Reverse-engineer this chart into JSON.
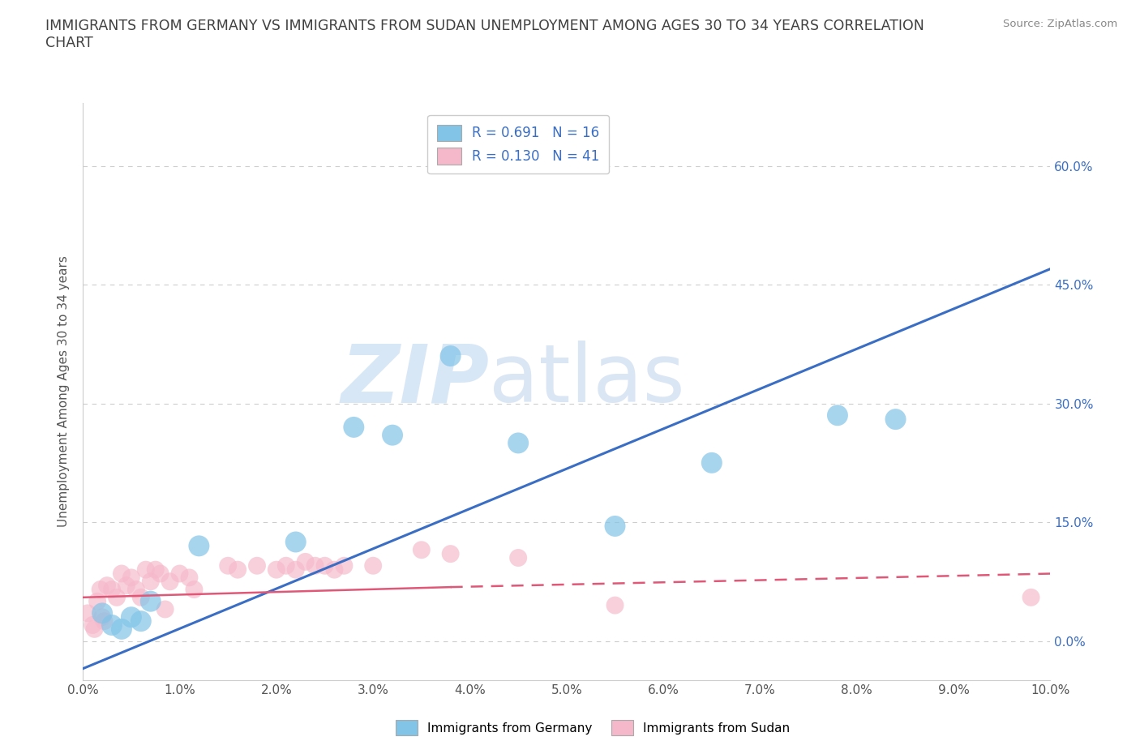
{
  "title": "IMMIGRANTS FROM GERMANY VS IMMIGRANTS FROM SUDAN UNEMPLOYMENT AMONG AGES 30 TO 34 YEARS CORRELATION\nCHART",
  "source": "Source: ZipAtlas.com",
  "ylabel": "Unemployment Among Ages 30 to 34 years",
  "xlim": [
    0.0,
    10.0
  ],
  "ylim": [
    -5.0,
    68.0
  ],
  "xticks": [
    0.0,
    1.0,
    2.0,
    3.0,
    4.0,
    5.0,
    6.0,
    7.0,
    8.0,
    9.0,
    10.0
  ],
  "yticks": [
    0.0,
    15.0,
    30.0,
    45.0,
    60.0
  ],
  "germany_color": "#82c4e8",
  "sudan_color": "#f5b8ca",
  "germany_line_color": "#3a6ec4",
  "sudan_line_color": "#e05878",
  "germany_R": 0.691,
  "germany_N": 16,
  "sudan_R": 0.13,
  "sudan_N": 41,
  "watermark_zip": "ZIP",
  "watermark_atlas": "atlas",
  "germany_scatter": [
    [
      0.2,
      3.5
    ],
    [
      0.3,
      2.0
    ],
    [
      0.4,
      1.5
    ],
    [
      0.5,
      3.0
    ],
    [
      0.6,
      2.5
    ],
    [
      0.7,
      5.0
    ],
    [
      1.2,
      12.0
    ],
    [
      2.2,
      12.5
    ],
    [
      2.8,
      27.0
    ],
    [
      3.2,
      26.0
    ],
    [
      3.8,
      36.0
    ],
    [
      4.5,
      25.0
    ],
    [
      5.5,
      14.5
    ],
    [
      6.5,
      22.5
    ],
    [
      7.8,
      28.5
    ],
    [
      8.4,
      28.0
    ]
  ],
  "sudan_scatter": [
    [
      0.05,
      3.5
    ],
    [
      0.1,
      2.0
    ],
    [
      0.12,
      1.5
    ],
    [
      0.15,
      5.0
    ],
    [
      0.18,
      6.5
    ],
    [
      0.2,
      3.0
    ],
    [
      0.22,
      2.5
    ],
    [
      0.25,
      7.0
    ],
    [
      0.3,
      6.5
    ],
    [
      0.35,
      5.5
    ],
    [
      0.4,
      8.5
    ],
    [
      0.45,
      7.0
    ],
    [
      0.5,
      8.0
    ],
    [
      0.55,
      6.5
    ],
    [
      0.6,
      5.5
    ],
    [
      0.65,
      9.0
    ],
    [
      0.7,
      7.5
    ],
    [
      0.75,
      9.0
    ],
    [
      0.8,
      8.5
    ],
    [
      0.85,
      4.0
    ],
    [
      0.9,
      7.5
    ],
    [
      1.0,
      8.5
    ],
    [
      1.1,
      8.0
    ],
    [
      1.15,
      6.5
    ],
    [
      1.5,
      9.5
    ],
    [
      1.6,
      9.0
    ],
    [
      1.8,
      9.5
    ],
    [
      2.0,
      9.0
    ],
    [
      2.1,
      9.5
    ],
    [
      2.2,
      9.0
    ],
    [
      2.3,
      10.0
    ],
    [
      2.4,
      9.5
    ],
    [
      2.5,
      9.5
    ],
    [
      2.6,
      9.0
    ],
    [
      2.7,
      9.5
    ],
    [
      3.0,
      9.5
    ],
    [
      3.5,
      11.5
    ],
    [
      3.8,
      11.0
    ],
    [
      4.5,
      10.5
    ],
    [
      5.5,
      4.5
    ],
    [
      9.8,
      5.5
    ]
  ],
  "germany_trendline": [
    [
      0.0,
      -3.5
    ],
    [
      10.0,
      47.0
    ]
  ],
  "sudan_trendline_solid": [
    [
      0.0,
      5.5
    ],
    [
      3.8,
      6.8
    ]
  ],
  "sudan_trendline_dashed": [
    [
      3.8,
      6.8
    ],
    [
      10.0,
      8.5
    ]
  ],
  "background_color": "#ffffff",
  "grid_color": "#c8c8c8",
  "title_color": "#404040",
  "axis_label_color": "#5080b0",
  "tick_label_color": "#3a6ec4"
}
